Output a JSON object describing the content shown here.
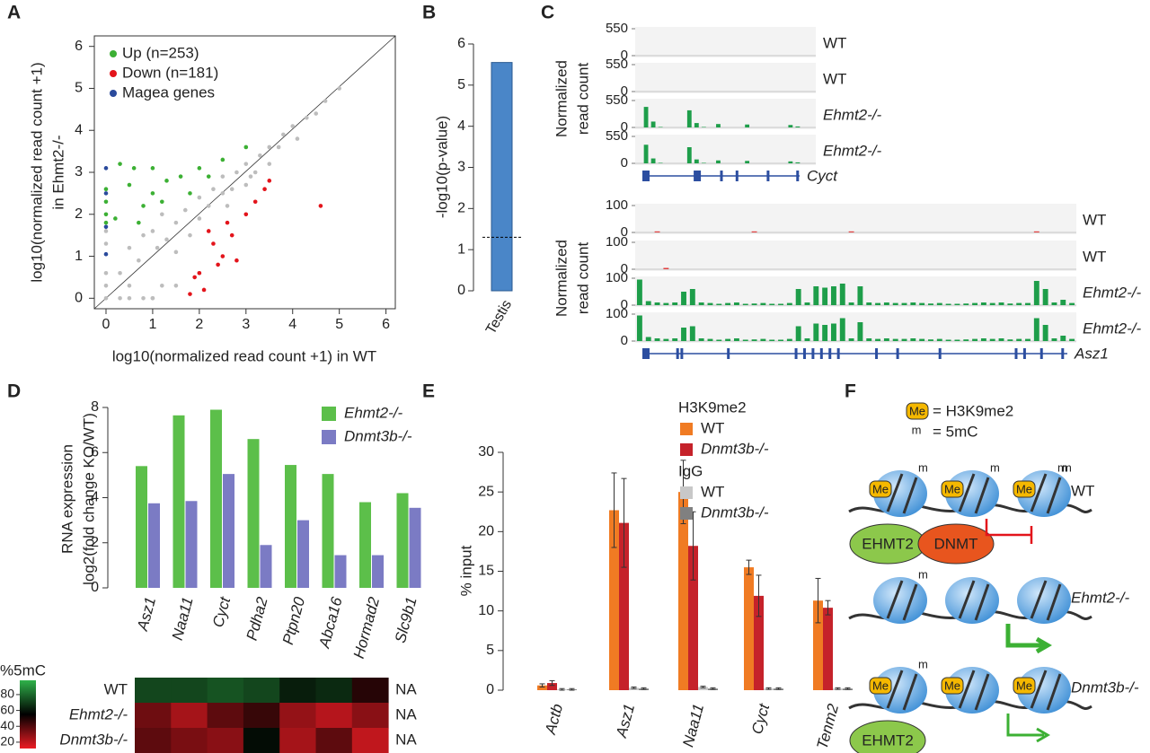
{
  "chart_data": [
    {
      "panel": "A",
      "type": "scatter",
      "xlabel": "log10(normalized read count +1) in WT",
      "ylabel": [
        "log10(normalized read count +1)",
        "in Ehmt2-/-"
      ],
      "xlim": [
        -0.25,
        6.2
      ],
      "ylim": [
        -0.25,
        6.25
      ],
      "xticks": [
        0,
        1,
        2,
        3,
        4,
        5,
        6
      ],
      "yticks": [
        0,
        1,
        2,
        3,
        4,
        5,
        6
      ],
      "series": [
        {
          "color": "#bdbdbd",
          "x": [
            0,
            0,
            0,
            0,
            0,
            0.3,
            0.3,
            0.5,
            0.5,
            0.7,
            0.8,
            1,
            1,
            1.1,
            1.2,
            1.3,
            1.5,
            1.5,
            1.7,
            1.8,
            2,
            2,
            2.2,
            2.3,
            2.5,
            2.5,
            2.7,
            2.8,
            3,
            3,
            3.2,
            3.3,
            3.5,
            3.5,
            3.7,
            3.8,
            4,
            4.1,
            4.3,
            4.5,
            4.7,
            5,
            0.5,
            1,
            1.5,
            2,
            1.2,
            0.8,
            2.6,
            3.1
          ],
          "y": [
            0,
            0.3,
            0.6,
            1.3,
            1.6,
            0,
            0.6,
            0.3,
            1.2,
            0.9,
            1.5,
            0,
            1.6,
            1.2,
            2.0,
            1.4,
            1.8,
            1.1,
            2.1,
            1.5,
            2.4,
            1.9,
            2.2,
            2.6,
            2.5,
            2.9,
            2.6,
            3.0,
            3.2,
            2.7,
            3.0,
            3.4,
            3.6,
            3.2,
            3.6,
            3.9,
            4.1,
            3.8,
            4.3,
            4.4,
            4.7,
            5.0,
            0,
            0,
            0.3,
            0.6,
            0.3,
            0,
            2.2,
            2.9
          ]
        },
        {
          "name": "Up (n=253)",
          "color": "#3cb034",
          "x": [
            0,
            0,
            0,
            0.5,
            1,
            1.3,
            0.8,
            1.6,
            2,
            2.5,
            0.3,
            1,
            0.6,
            2.2,
            1.8,
            1.2,
            0.2,
            0,
            0.7,
            3
          ],
          "y": [
            2,
            1.8,
            2.3,
            2.7,
            2.5,
            2.8,
            2.2,
            2.9,
            3.1,
            3.3,
            3.2,
            3.1,
            3.1,
            2.9,
            2.5,
            2.3,
            1.9,
            2.6,
            1.8,
            3.6
          ]
        },
        {
          "name": "Down (n=181)",
          "color": "#e3141b",
          "x": [
            2,
            2.3,
            2.5,
            2.7,
            3,
            2.1,
            2.4,
            3.2,
            2.8,
            1.9,
            2.6,
            3.4,
            4.6,
            2.2,
            3.5,
            1.8
          ],
          "y": [
            0.6,
            1.3,
            1,
            1.5,
            2,
            0.2,
            0.8,
            2.3,
            0.9,
            0.5,
            1.8,
            2.6,
            2.2,
            1.6,
            2.8,
            0.1
          ]
        },
        {
          "name": "Magea genes",
          "color": "#2a4a9c",
          "x": [
            0,
            0,
            0,
            0
          ],
          "y": [
            2.5,
            3.1,
            1.05,
            1.7
          ]
        }
      ]
    },
    {
      "panel": "B",
      "type": "bar",
      "categories": [
        "Testis"
      ],
      "values": [
        5.55
      ],
      "color": "#4a86c8",
      "ylabel": "-log10(p-value)",
      "ylim": [
        0,
        6
      ],
      "yticks": [
        0,
        1,
        2,
        3,
        4,
        5,
        6
      ],
      "hline": 1.3
    },
    {
      "panel": "C",
      "type": "tracks",
      "ylabel": [
        "Normalized",
        "read count"
      ],
      "loci": [
        {
          "gene": "Cyct",
          "ylim": [
            0,
            550
          ],
          "yticks": [
            0,
            550
          ],
          "tracks": [
            {
              "name": "WT",
              "color": "#1e9e4a",
              "values": [
                0,
                0,
                0,
                0,
                0,
                0,
                0,
                0,
                0,
                0,
                0,
                0,
                0,
                0,
                0,
                0,
                0,
                0,
                0,
                0,
                0,
                0,
                0,
                0,
                0
              ]
            },
            {
              "name": "WT",
              "color": "#1e9e4a",
              "values": [
                0,
                0,
                0,
                0,
                0,
                0,
                0,
                0,
                0,
                0,
                0,
                0,
                0,
                0,
                0,
                0,
                0,
                0,
                0,
                0,
                0,
                0,
                0,
                0,
                0
              ]
            },
            {
              "name": "Ehmt2-/-",
              "color": "#1e9e4a",
              "values": [
                0,
                420,
                120,
                10,
                0,
                0,
                0,
                350,
                90,
                10,
                0,
                70,
                0,
                0,
                0,
                60,
                0,
                0,
                0,
                0,
                0,
                50,
                20,
                0,
                0
              ]
            },
            {
              "name": "Ehmt2-/-",
              "color": "#1e9e4a",
              "values": [
                0,
                380,
                100,
                10,
                0,
                0,
                0,
                330,
                80,
                10,
                0,
                60,
                0,
                0,
                0,
                50,
                0,
                0,
                0,
                0,
                0,
                40,
                20,
                0,
                0
              ]
            }
          ]
        },
        {
          "gene": "Asz1",
          "ylim": [
            0,
            100
          ],
          "yticks": [
            0,
            100
          ],
          "tracks": [
            {
              "name": "WT",
              "color": "#e04040",
              "values": [
                0,
                0,
                4,
                0,
                0,
                0,
                0,
                0,
                0,
                0,
                0,
                0,
                0,
                4,
                0,
                0,
                0,
                0,
                0,
                0,
                0,
                0,
                0,
                0,
                4,
                0,
                0,
                0,
                0,
                0,
                0,
                0,
                0,
                0,
                0,
                0,
                0,
                0,
                0,
                0,
                0,
                0,
                0,
                0,
                0,
                4,
                0,
                0,
                0,
                0
              ]
            },
            {
              "name": "WT",
              "color": "#e04040",
              "values": [
                0,
                0,
                0,
                5,
                0,
                0,
                0,
                0,
                0,
                0,
                0,
                0,
                0,
                0,
                0,
                0,
                0,
                0,
                0,
                0,
                0,
                0,
                0,
                0,
                0,
                0,
                0,
                0,
                0,
                0,
                0,
                0,
                0,
                0,
                0,
                0,
                0,
                0,
                0,
                0,
                0,
                0,
                0,
                0,
                0,
                0,
                0,
                0,
                0,
                0
              ]
            },
            {
              "name": "Ehmt2-/-",
              "color": "#1e9e4a",
              "values": [
                95,
                15,
                10,
                8,
                10,
                50,
                60,
                10,
                8,
                5,
                8,
                10,
                5,
                6,
                8,
                5,
                5,
                8,
                60,
                10,
                70,
                65,
                70,
                80,
                10,
                70,
                10,
                8,
                10,
                8,
                8,
                10,
                8,
                6,
                8,
                5,
                5,
                6,
                8,
                10,
                8,
                10,
                6,
                8,
                8,
                90,
                60,
                10,
                20,
                8
              ]
            },
            {
              "name": "Ehmt2-/-",
              "color": "#1e9e4a",
              "values": [
                95,
                15,
                10,
                8,
                10,
                50,
                55,
                10,
                8,
                5,
                8,
                10,
                5,
                6,
                8,
                5,
                5,
                8,
                55,
                10,
                65,
                60,
                65,
                85,
                10,
                70,
                10,
                8,
                10,
                8,
                8,
                10,
                8,
                6,
                8,
                5,
                5,
                6,
                8,
                10,
                8,
                10,
                6,
                8,
                8,
                85,
                60,
                10,
                20,
                8
              ]
            }
          ]
        }
      ]
    },
    {
      "panel": "D",
      "type": "bar",
      "categories": [
        "Asz1",
        "Naa11",
        "Cyct",
        "Pdha2",
        "Ptpn20",
        "Abca16",
        "Hormad2",
        "Slc9b1"
      ],
      "series": [
        {
          "name": "Ehmt2-/-",
          "color": "#5cbf4a",
          "values": [
            5.4,
            7.65,
            7.9,
            6.6,
            5.45,
            5.05,
            3.8,
            4.2
          ]
        },
        {
          "name": "Dnmt3b-/-",
          "color": "#7b7bc4",
          "values": [
            3.75,
            3.85,
            5.05,
            1.9,
            3.0,
            1.45,
            1.45,
            3.55
          ]
        }
      ],
      "ylabel": [
        "RNA expression",
        "log2(fold change KO/WT)"
      ],
      "ylim": [
        0,
        8
      ],
      "yticks": [
        0,
        2,
        4,
        6,
        8
      ]
    },
    {
      "type": "heatmap",
      "colorbar_label": "%5mC",
      "clim": [
        12,
        98
      ],
      "cticks": [
        20,
        40,
        60,
        80
      ],
      "colors": [
        "#ec1c24",
        "#000000",
        "#2fb24a"
      ],
      "na_label": "NA",
      "rows": [
        {
          "name": "WT",
          "values": [
            72,
            72,
            75,
            72,
            62,
            65,
            48,
            null
          ]
        },
        {
          "name": "Ehmt2-/-",
          "values": [
            35,
            25,
            38,
            45,
            28,
            22,
            30,
            null
          ]
        },
        {
          "name": "Dnmt3b-/-",
          "values": [
            38,
            33,
            30,
            58,
            25,
            38,
            20,
            null
          ]
        }
      ]
    },
    {
      "panel": "E",
      "type": "bar",
      "categories": [
        "Actb",
        "Asz1",
        "Naa11",
        "Cyct",
        "Tenm2"
      ],
      "series": [
        {
          "group": "H3K9me2",
          "name": "WT",
          "color": "#f07b23",
          "values": [
            0.6,
            22.7,
            25,
            15.5,
            11.3
          ],
          "errors": [
            0.2,
            4.7,
            4,
            0.9,
            2.8
          ]
        },
        {
          "group": "H3K9me2",
          "name": "Dnmt3b-/-",
          "color": "#c5222a",
          "values": [
            0.9,
            21.1,
            18.2,
            11.9,
            10.4
          ],
          "errors": [
            0.3,
            5.6,
            4.3,
            2.6,
            0.9
          ]
        },
        {
          "group": "IgG",
          "name": "WT",
          "color": "#c8c8c8",
          "values": [
            0.1,
            0.3,
            0.4,
            0.2,
            0.2
          ],
          "errors": [
            0.1,
            0.1,
            0.1,
            0.1,
            0.1
          ]
        },
        {
          "group": "IgG",
          "name": "Dnmt3b-/-",
          "color": "#808080",
          "values": [
            0.1,
            0.2,
            0.2,
            0.2,
            0.2
          ],
          "errors": [
            0.1,
            0.1,
            0.1,
            0.1,
            0.1
          ]
        }
      ],
      "ylabel": "% input",
      "ylim": [
        0,
        30
      ],
      "yticks": [
        0,
        5,
        10,
        15,
        20,
        25,
        30
      ]
    }
  ],
  "diagram": {
    "panel": "F",
    "legend": {
      "me": "Me",
      "me_text": "= H3K9me2",
      "m": "m",
      "m_text": "= 5mC"
    },
    "rows": [
      {
        "label": "WT",
        "proteins": [
          "EHMT2",
          "DNMT"
        ]
      },
      {
        "label": "Ehmt2-/-",
        "proteins": []
      },
      {
        "label": "Dnmt3b-/-",
        "proteins": [
          "EHMT2"
        ]
      }
    ]
  }
}
